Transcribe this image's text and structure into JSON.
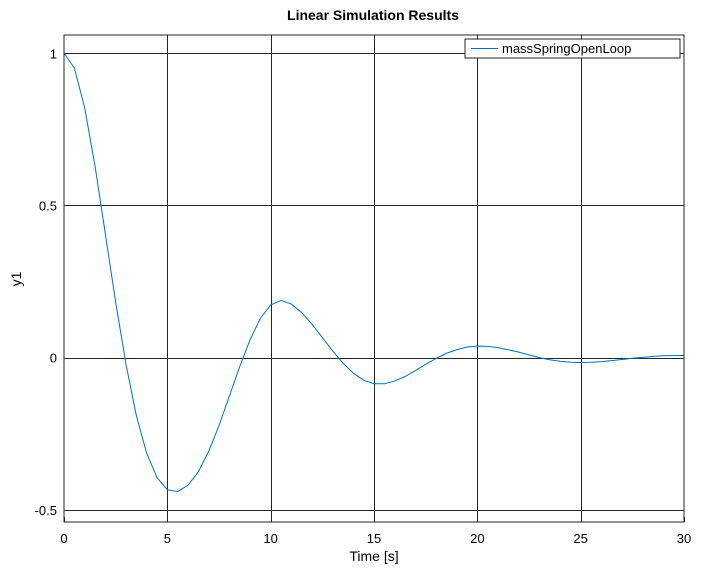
{
  "chart_data": {
    "type": "line",
    "title": "Linear Simulation Results",
    "xlabel": "Time [s]",
    "ylabel": "y1",
    "xlim": [
      0,
      30
    ],
    "ylim": [
      -0.54,
      1.06
    ],
    "grid": true,
    "legend_position": "top-right",
    "x_ticks": [
      0,
      5,
      10,
      15,
      20,
      25,
      30
    ],
    "x_tick_labels": [
      "0",
      "5",
      "10",
      "15",
      "20",
      "25",
      "30"
    ],
    "y_ticks": [
      -0.5,
      0,
      0.5,
      1
    ],
    "y_tick_labels": [
      "-0.5",
      "0",
      "0.5",
      "1"
    ],
    "series": [
      {
        "name": "massSpringOpenLoop",
        "color": "#0072bd",
        "x": [
          0,
          0.5,
          1,
          1.5,
          2,
          2.5,
          3,
          3.5,
          4,
          4.5,
          5,
          5.5,
          6,
          6.5,
          7,
          7.5,
          8,
          8.5,
          9,
          9.5,
          10,
          10.5,
          11,
          11.5,
          12,
          12.5,
          13,
          13.5,
          14,
          14.5,
          15,
          15.5,
          16,
          16.5,
          17,
          17.5,
          18,
          18.5,
          19,
          19.5,
          20,
          20.5,
          21,
          21.5,
          22,
          22.5,
          23,
          23.5,
          24,
          24.5,
          25,
          25.5,
          26,
          26.5,
          27,
          27.5,
          28,
          28.5,
          29,
          29.5,
          30
        ],
        "y": [
          1.0,
          0.952,
          0.821,
          0.63,
          0.407,
          0.182,
          -0.022,
          -0.19,
          -0.314,
          -0.394,
          -0.434,
          -0.44,
          -0.419,
          -0.375,
          -0.308,
          -0.223,
          -0.127,
          -0.03,
          0.058,
          0.129,
          0.173,
          0.188,
          0.176,
          0.148,
          0.11,
          0.066,
          0.022,
          -0.018,
          -0.051,
          -0.074,
          -0.086,
          -0.086,
          -0.077,
          -0.062,
          -0.043,
          -0.022,
          -0.003,
          0.014,
          0.026,
          0.035,
          0.038,
          0.037,
          0.033,
          0.026,
          0.018,
          0.009,
          0.0,
          -0.007,
          -0.012,
          -0.015,
          -0.016,
          -0.015,
          -0.013,
          -0.01,
          -0.006,
          -0.002,
          0.001,
          0.004,
          0.006,
          0.007,
          0.007
        ]
      }
    ]
  }
}
